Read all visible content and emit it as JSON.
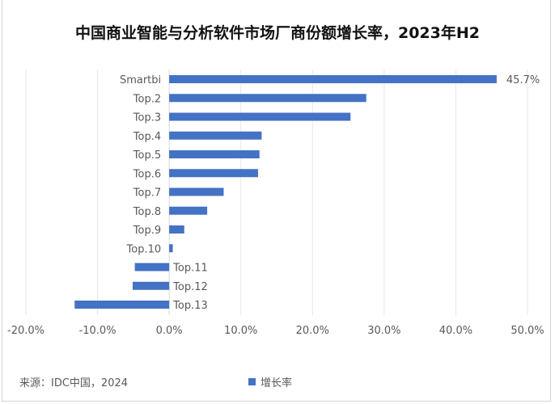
{
  "chart_data": {
    "type": "bar",
    "orientation": "horizontal",
    "title": "中国商业智能与分析软件市场厂商份额增长率，2023年H2",
    "categories": [
      "Smartbi",
      "Top.2",
      "Top.3",
      "Top.4",
      "Top.5",
      "Top.6",
      "Top.7",
      "Top.8",
      "Top.9",
      "Top.10",
      "Top.11",
      "Top.12",
      "Top.13"
    ],
    "series": [
      {
        "name": "增长率",
        "values": [
          45.7,
          27.5,
          25.3,
          12.9,
          12.6,
          12.4,
          7.6,
          5.3,
          2.1,
          0.5,
          -4.8,
          -5.1,
          -13.2
        ],
        "color": "#4472c4"
      }
    ],
    "data_labels": [
      {
        "category": "Smartbi",
        "text": "45.7%"
      }
    ],
    "xlim": [
      -20,
      50
    ],
    "x_ticks": [
      "-20.0%",
      "-10.0%",
      "0.0%",
      "10.0%",
      "20.0%",
      "30.0%",
      "40.0%",
      "50.0%"
    ],
    "grid": "vertical",
    "legend": "bottom"
  },
  "source": "来源：IDC中国，2024"
}
